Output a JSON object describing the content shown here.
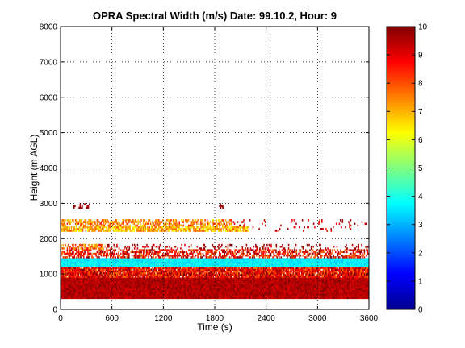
{
  "chart_data": {
    "type": "heatmap",
    "title": "OPRA Spectral Width (m/s)  Date: 99.10.2, Hour: 9",
    "xlabel": "Time (s)",
    "ylabel": "Height (m AGL)",
    "xlim": [
      0,
      3600
    ],
    "ylim": [
      0,
      8000
    ],
    "xticks": [
      0,
      600,
      1200,
      1800,
      2400,
      3000,
      3600
    ],
    "yticks": [
      0,
      1000,
      2000,
      3000,
      4000,
      5000,
      6000,
      7000,
      8000
    ],
    "grid": true,
    "colorbar": {
      "range": [
        0,
        10
      ],
      "ticks": [
        0,
        1,
        2,
        3,
        4,
        5,
        6,
        7,
        8,
        9,
        10
      ],
      "colormap": "jet"
    },
    "bands": [
      {
        "y": [
          300,
          900
        ],
        "value_range": [
          9.0,
          10.0
        ],
        "coverage": 1.0,
        "x": [
          0,
          3600
        ]
      },
      {
        "y": [
          900,
          1200
        ],
        "value_range": [
          7.5,
          10.0
        ],
        "coverage": 0.95,
        "x": [
          0,
          3600
        ]
      },
      {
        "y": [
          1200,
          1300
        ],
        "value_range": [
          3.2,
          4.2
        ],
        "coverage": 1.0,
        "x": [
          0,
          3600
        ]
      },
      {
        "y": [
          1300,
          1400
        ],
        "value_range": [
          5.5,
          7.5
        ],
        "coverage": 0.35,
        "x": [
          0,
          3600
        ]
      },
      {
        "y": [
          1300,
          1450
        ],
        "value_range": [
          3.2,
          4.0
        ],
        "coverage": 1.0,
        "x": [
          0,
          3600
        ]
      },
      {
        "y": [
          1450,
          1700
        ],
        "value_range": [
          7.5,
          10.0
        ],
        "coverage": 0.55,
        "x": [
          0,
          3600
        ]
      },
      {
        "y": [
          1700,
          1850
        ],
        "value_range": [
          6.5,
          9.0
        ],
        "coverage": 0.5,
        "x": [
          0,
          520
        ]
      },
      {
        "y": [
          1700,
          1850
        ],
        "value_range": [
          9.0,
          10.0
        ],
        "coverage": 0.2,
        "x": [
          520,
          3600
        ]
      },
      {
        "y": [
          2200,
          2350
        ],
        "value_range": [
          6.0,
          8.0
        ],
        "coverage": 0.8,
        "x": [
          0,
          2200
        ]
      },
      {
        "y": [
          2350,
          2550
        ],
        "value_range": [
          6.5,
          8.5
        ],
        "coverage": 0.55,
        "x": [
          0,
          2000
        ]
      },
      {
        "y": [
          2200,
          2550
        ],
        "value_range": [
          8.5,
          10.0
        ],
        "coverage": 0.08,
        "x": [
          2000,
          3600
        ]
      },
      {
        "y": [
          2850,
          3000
        ],
        "value_range": [
          9.5,
          10.0
        ],
        "coverage": 0.25,
        "x": [
          150,
          350
        ]
      },
      {
        "y": [
          2850,
          3000
        ],
        "value_range": [
          9.5,
          10.0
        ],
        "coverage": 0.5,
        "x": [
          1850,
          1900
        ]
      }
    ]
  }
}
